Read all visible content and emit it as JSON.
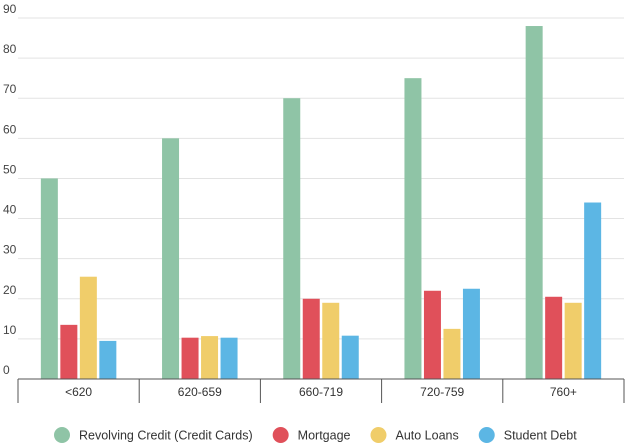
{
  "chart_data": {
    "type": "bar",
    "categories": [
      "<620",
      "620-659",
      "660-719",
      "720-759",
      "760+"
    ],
    "series": [
      {
        "name": "Revolving Credit (Credit Cards)",
        "color": "#8fc4a6",
        "values": [
          50,
          60,
          70,
          75,
          88
        ]
      },
      {
        "name": "Mortgage",
        "color": "#e0505a",
        "values": [
          13.5,
          10.3,
          20,
          22,
          20.5
        ]
      },
      {
        "name": "Auto Loans",
        "color": "#f0cd6a",
        "values": [
          25.5,
          10.7,
          19,
          12.5,
          19
        ]
      },
      {
        "name": "Student Debt",
        "color": "#5cb6e4",
        "values": [
          9.5,
          10.3,
          10.8,
          22.5,
          44
        ]
      }
    ],
    "ylim": [
      0,
      90
    ],
    "yticks": [
      "0",
      "10",
      "20",
      "30",
      "40",
      "50",
      "60",
      "70",
      "80",
      "90"
    ],
    "grid": true,
    "legend_position": "bottom"
  }
}
